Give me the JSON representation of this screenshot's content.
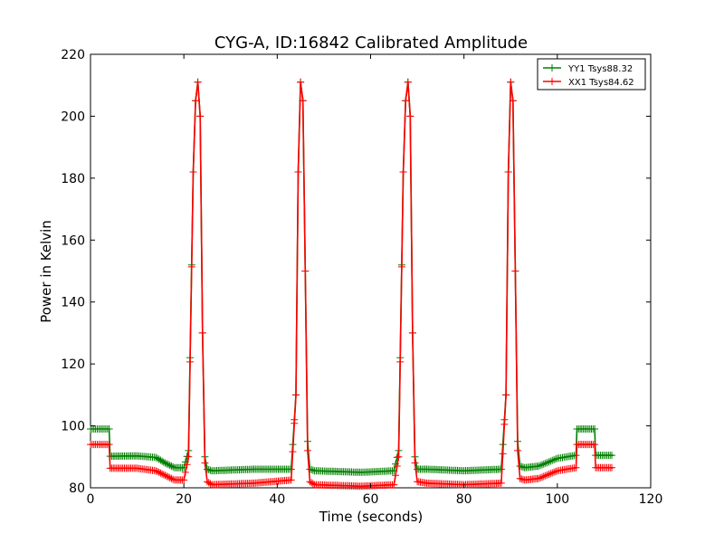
{
  "chart_data": {
    "type": "line",
    "title": "CYG-A, ID:16842 Calibrated Amplitude",
    "xlabel": "Time (seconds)",
    "ylabel": "Power in Kelvin",
    "xlim": [
      0,
      120
    ],
    "ylim": [
      80,
      220
    ],
    "xticks": [
      "0",
      "20",
      "40",
      "60",
      "80",
      "100",
      "120"
    ],
    "yticks": [
      "80",
      "100",
      "120",
      "140",
      "160",
      "180",
      "200",
      "220"
    ],
    "grid": false,
    "legend_position": "top-right",
    "series": [
      {
        "name": "YY1 Tsys88.32",
        "color": "#008000",
        "marker": "+",
        "points": [
          [
            0,
            99
          ],
          [
            4,
            99
          ],
          [
            4.2,
            90.2
          ],
          [
            10,
            90.3
          ],
          [
            14,
            89.8
          ],
          [
            16,
            88
          ],
          [
            18,
            86.5
          ],
          [
            20,
            86.5
          ],
          [
            21,
            92
          ],
          [
            22,
            182
          ],
          [
            22.5,
            205
          ],
          [
            23,
            211
          ],
          [
            23.5,
            200
          ],
          [
            24,
            130
          ],
          [
            24.5,
            90
          ],
          [
            25,
            86
          ],
          [
            26,
            85.5
          ],
          [
            35,
            86
          ],
          [
            43,
            86
          ],
          [
            44,
            110
          ],
          [
            44.5,
            182
          ],
          [
            45,
            211
          ],
          [
            45.5,
            205
          ],
          [
            46,
            150
          ],
          [
            46.5,
            95
          ],
          [
            47,
            86
          ],
          [
            48,
            85.5
          ],
          [
            58,
            85
          ],
          [
            65,
            85.5
          ],
          [
            66,
            92
          ],
          [
            67,
            182
          ],
          [
            67.5,
            205
          ],
          [
            68,
            211
          ],
          [
            68.5,
            200
          ],
          [
            69,
            130
          ],
          [
            69.5,
            90
          ],
          [
            70,
            86
          ],
          [
            72,
            86
          ],
          [
            80,
            85.5
          ],
          [
            88,
            86
          ],
          [
            89,
            110
          ],
          [
            89.5,
            182
          ],
          [
            90,
            211
          ],
          [
            90.5,
            205
          ],
          [
            91,
            150
          ],
          [
            91.5,
            95
          ],
          [
            92,
            87
          ],
          [
            93,
            86.5
          ],
          [
            96,
            87
          ],
          [
            100,
            89.5
          ],
          [
            104,
            90.5
          ],
          [
            104.2,
            99
          ],
          [
            108,
            99
          ],
          [
            108.2,
            90.5
          ],
          [
            112,
            90.5
          ]
        ]
      },
      {
        "name": "XX1 Tsys84.62",
        "color": "#ff0000",
        "marker": "+",
        "points": [
          [
            0,
            94
          ],
          [
            4,
            94
          ],
          [
            4.2,
            86.3
          ],
          [
            10,
            86.3
          ],
          [
            14,
            85.5
          ],
          [
            16,
            84
          ],
          [
            18,
            82.5
          ],
          [
            20,
            82.5
          ],
          [
            21,
            90
          ],
          [
            22,
            182
          ],
          [
            22.5,
            205
          ],
          [
            23,
            211
          ],
          [
            23.5,
            200
          ],
          [
            24,
            130
          ],
          [
            24.5,
            88
          ],
          [
            25,
            82
          ],
          [
            26,
            81
          ],
          [
            35,
            81.5
          ],
          [
            43,
            82.5
          ],
          [
            44,
            110
          ],
          [
            44.5,
            182
          ],
          [
            45,
            211
          ],
          [
            45.5,
            205
          ],
          [
            46,
            150
          ],
          [
            46.5,
            92
          ],
          [
            47,
            82
          ],
          [
            48,
            81
          ],
          [
            58,
            80.5
          ],
          [
            65,
            81
          ],
          [
            66,
            90
          ],
          [
            67,
            182
          ],
          [
            67.5,
            205
          ],
          [
            68,
            211
          ],
          [
            68.5,
            200
          ],
          [
            69,
            130
          ],
          [
            69.5,
            88
          ],
          [
            70,
            82
          ],
          [
            72,
            81.5
          ],
          [
            80,
            81
          ],
          [
            88,
            81.5
          ],
          [
            89,
            110
          ],
          [
            89.5,
            182
          ],
          [
            90,
            211
          ],
          [
            90.5,
            205
          ],
          [
            91,
            150
          ],
          [
            91.5,
            92
          ],
          [
            92,
            83
          ],
          [
            93,
            82.5
          ],
          [
            96,
            83
          ],
          [
            100,
            85.5
          ],
          [
            104,
            86.5
          ],
          [
            104.2,
            94
          ],
          [
            108,
            94
          ],
          [
            108.2,
            86.5
          ],
          [
            112,
            86.5
          ]
        ]
      }
    ]
  }
}
